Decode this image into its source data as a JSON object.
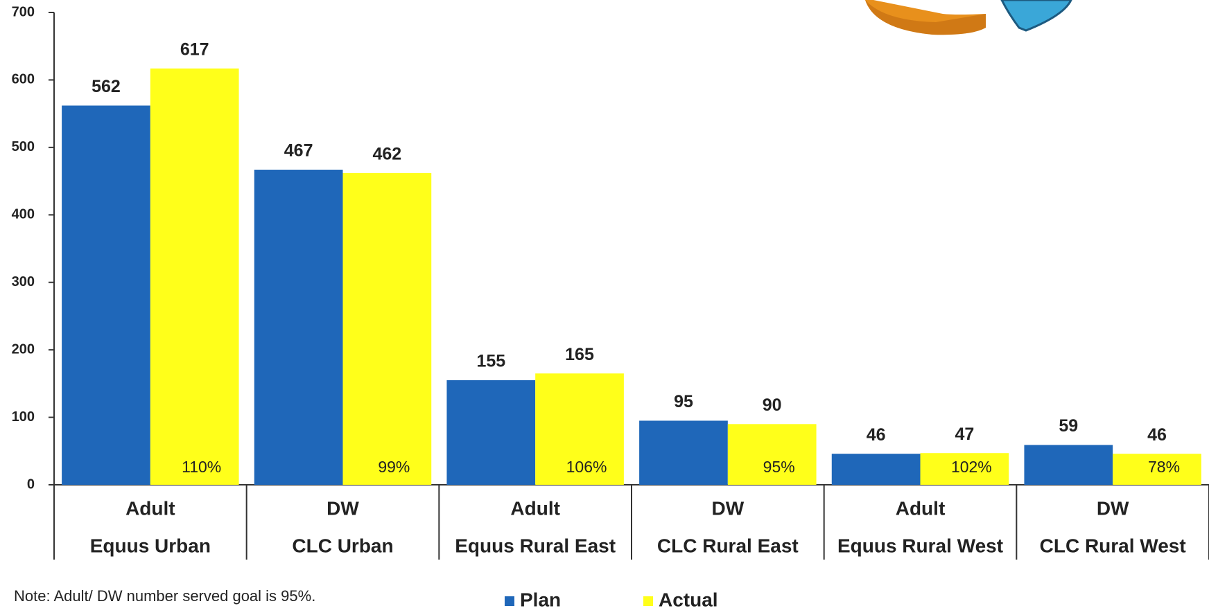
{
  "chart_data": {
    "type": "bar",
    "categories": [
      "Equus Urban",
      "CLC Urban",
      "Equus Rural East",
      "CLC Rural East",
      "Equus Rural West",
      "CLC Rural West"
    ],
    "subcategories": [
      "Adult",
      "DW",
      "Adult",
      "DW",
      "Adult",
      "DW"
    ],
    "series": [
      {
        "name": "Plan",
        "color": "#1f67b9",
        "values": [
          562,
          467,
          155,
          95,
          46,
          59
        ]
      },
      {
        "name": "Actual",
        "color": "#ffff1a",
        "values": [
          617,
          462,
          165,
          90,
          47,
          46
        ]
      }
    ],
    "attainment_labels": [
      "110%",
      "99%",
      "106%",
      "95%",
      "102%",
      "78%"
    ],
    "ylim": [
      0,
      700
    ],
    "yticks": [
      0,
      100,
      200,
      300,
      400,
      500,
      600,
      700
    ],
    "legend": "bottom",
    "note": "Note:  Adult/ DW number served goal is 95%."
  }
}
